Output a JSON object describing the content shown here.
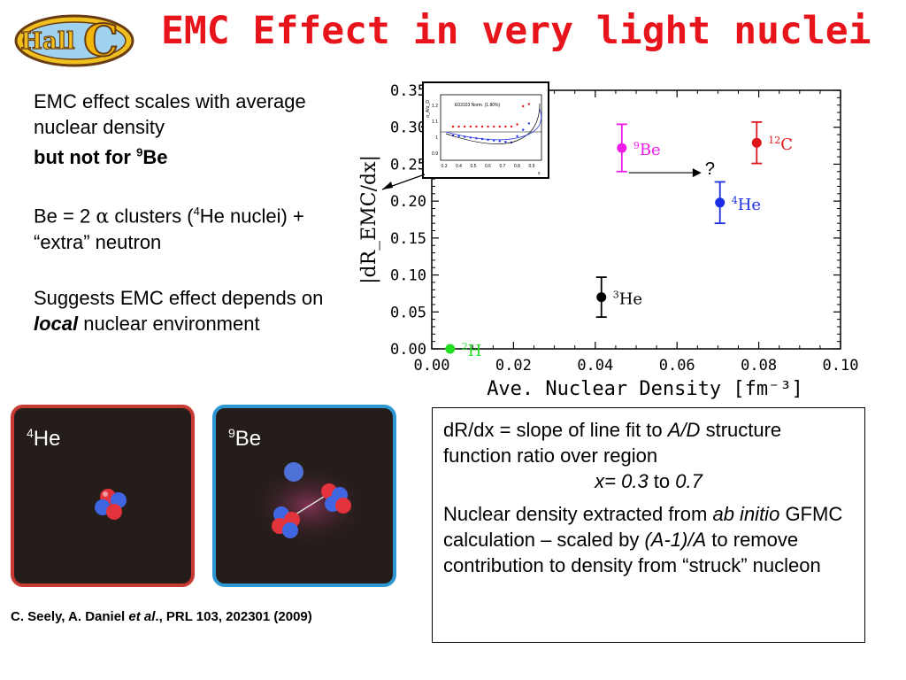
{
  "logo": {
    "text": "Hall C",
    "label": "Hall",
    "letter": "C"
  },
  "title": "EMC Effect in very light nuclei",
  "left_text": {
    "p1_line1": "EMC effect scales with average nuclear density",
    "p1_bold": "but not for ",
    "p1_sup": "9",
    "p1_bold_end": "Be",
    "p2_a": "Be = 2 ",
    "p2_alpha": "α",
    "p2_b": " clusters (",
    "p2_sup": "4",
    "p2_c": "He nuclei) + “extra” neutron",
    "p3_a": "Suggests EMC effect depends on ",
    "p3_local": "local",
    "p3_b": " nuclear environment"
  },
  "tiles": {
    "he": {
      "mass": "4",
      "sym": "He"
    },
    "be": {
      "mass": "9",
      "sym": "Be"
    }
  },
  "citation": {
    "a": "C. Seely, A. Daniel ",
    "etal": "et al",
    "b": "., PRL 103, 202301 (2009)"
  },
  "infobox": {
    "l1_a": "dR/dx = slope of line fit to ",
    "l1_ad": "A/D",
    "l1_b": " structure function ratio over region",
    "l2_x": "x= 0.3",
    "l2_to": " to ",
    "l2_07": "0.7",
    "p2_a": "Nuclear density extracted from ",
    "p2_ab": "ab initio",
    "p2_b": " GFMC calculation – scaled by ",
    "p2_am": "(A-1)/A",
    "p2_c": " to remove contribution to density from “struck” nucleon"
  },
  "question_mark": "?",
  "colors": {
    "title": "#e8141b",
    "he4_tile_border": "#c63a31",
    "be9_tile_border": "#2c97d1"
  },
  "chart_data": {
    "type": "scatter",
    "xlabel": "Ave. Nuclear Density [fm⁻³]",
    "ylabel": "|dR_EMC/dx|",
    "xlim": [
      0.0,
      0.1
    ],
    "ylim": [
      0.0,
      0.35
    ],
    "xticks": [
      "0.00",
      "0.02",
      "0.04",
      "0.06",
      "0.08",
      "0.10"
    ],
    "yticks": [
      "0.00",
      "0.05",
      "0.10",
      "0.15",
      "0.20",
      "0.25",
      "0.30",
      "0.35"
    ],
    "points": [
      {
        "mass": "2",
        "sym": "H",
        "x": 0.0045,
        "y": 0.0,
        "err": 0.0,
        "color": "#22dd22"
      },
      {
        "mass": "3",
        "sym": "He",
        "x": 0.0415,
        "y": 0.07,
        "err": 0.027,
        "color": "#000000"
      },
      {
        "mass": "9",
        "sym": "Be",
        "x": 0.0465,
        "y": 0.272,
        "err": 0.032,
        "color": "#ee1ce6"
      },
      {
        "mass": "4",
        "sym": "He",
        "x": 0.0705,
        "y": 0.198,
        "err": 0.028,
        "color": "#1c2ee6"
      },
      {
        "mass": "12",
        "sym": "C",
        "x": 0.0795,
        "y": 0.279,
        "err": 0.028,
        "color": "#e0151b"
      }
    ],
    "inset": {
      "title": "E03103 Norm. (1.80%)",
      "ylabel": "σ_A/σ_D",
      "xlabel": "x",
      "yticks": [
        "0.9",
        "1",
        "1.1",
        "1.2"
      ],
      "xticks": [
        "0.3",
        "0.4",
        "0.5",
        "0.6",
        "0.7",
        "0.8",
        "0.9"
      ]
    }
  }
}
